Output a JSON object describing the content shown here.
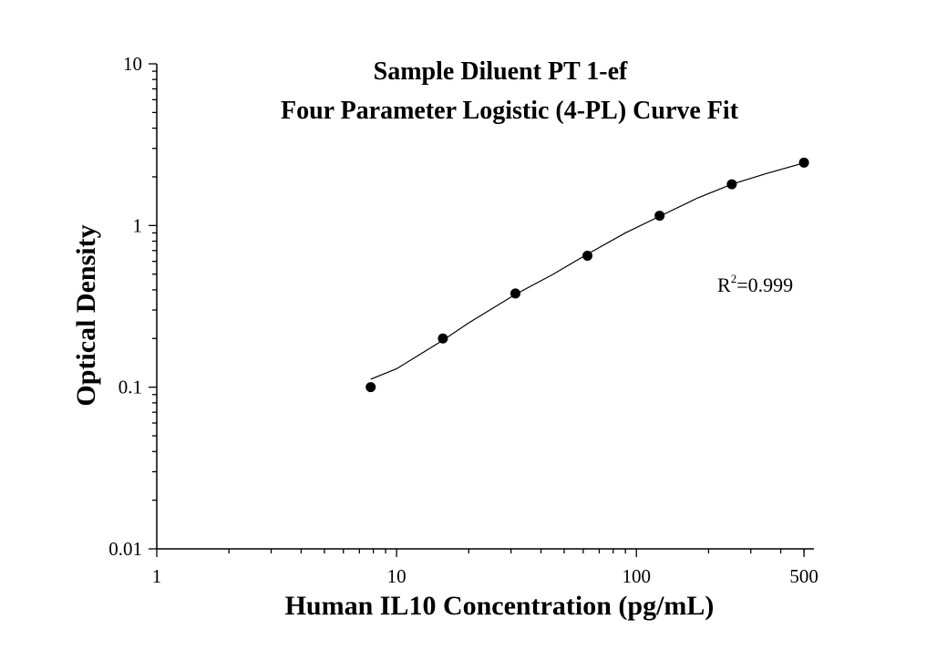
{
  "chart_data": {
    "type": "scatter",
    "title_line1": "Sample Diluent PT 1-ef",
    "title_line2": "Four Parameter Logistic (4-PL) Curve Fit",
    "xlabel": "Human IL10 Concentration (pg/mL)",
    "ylabel": "Optical Density",
    "x_scale": "log",
    "y_scale": "log",
    "xlim": [
      1,
      550
    ],
    "ylim": [
      0.01,
      10
    ],
    "x_ticks": [
      {
        "value": 1,
        "label": "1"
      },
      {
        "value": 10,
        "label": "10"
      },
      {
        "value": 100,
        "label": "100"
      },
      {
        "value": 500,
        "label": "500"
      }
    ],
    "y_ticks": [
      {
        "value": 0.01,
        "label": "0.01"
      },
      {
        "value": 0.1,
        "label": "0.1"
      },
      {
        "value": 1,
        "label": "1"
      },
      {
        "value": 10,
        "label": "10"
      }
    ],
    "grid": false,
    "series": [
      {
        "marker_color": "#000000",
        "points": [
          {
            "x": 7.8,
            "y": 0.1
          },
          {
            "x": 15.6,
            "y": 0.2
          },
          {
            "x": 31.3,
            "y": 0.38
          },
          {
            "x": 62.5,
            "y": 0.65
          },
          {
            "x": 125,
            "y": 1.15
          },
          {
            "x": 250,
            "y": 1.8
          },
          {
            "x": 500,
            "y": 2.45
          }
        ]
      }
    ],
    "fit_curve": {
      "model": "4-PL",
      "color": "#000000",
      "points": [
        {
          "x": 7.8,
          "y": 0.112
        },
        {
          "x": 10,
          "y": 0.13
        },
        {
          "x": 15.6,
          "y": 0.195
        },
        {
          "x": 20,
          "y": 0.25
        },
        {
          "x": 31.3,
          "y": 0.375
        },
        {
          "x": 45,
          "y": 0.5
        },
        {
          "x": 62.5,
          "y": 0.665
        },
        {
          "x": 90,
          "y": 0.9
        },
        {
          "x": 125,
          "y": 1.14
        },
        {
          "x": 180,
          "y": 1.48
        },
        {
          "x": 250,
          "y": 1.8
        },
        {
          "x": 350,
          "y": 2.1
        },
        {
          "x": 500,
          "y": 2.44
        }
      ]
    },
    "annotation": {
      "base": "R",
      "superscript": "2",
      "rest": "=0.999"
    }
  }
}
